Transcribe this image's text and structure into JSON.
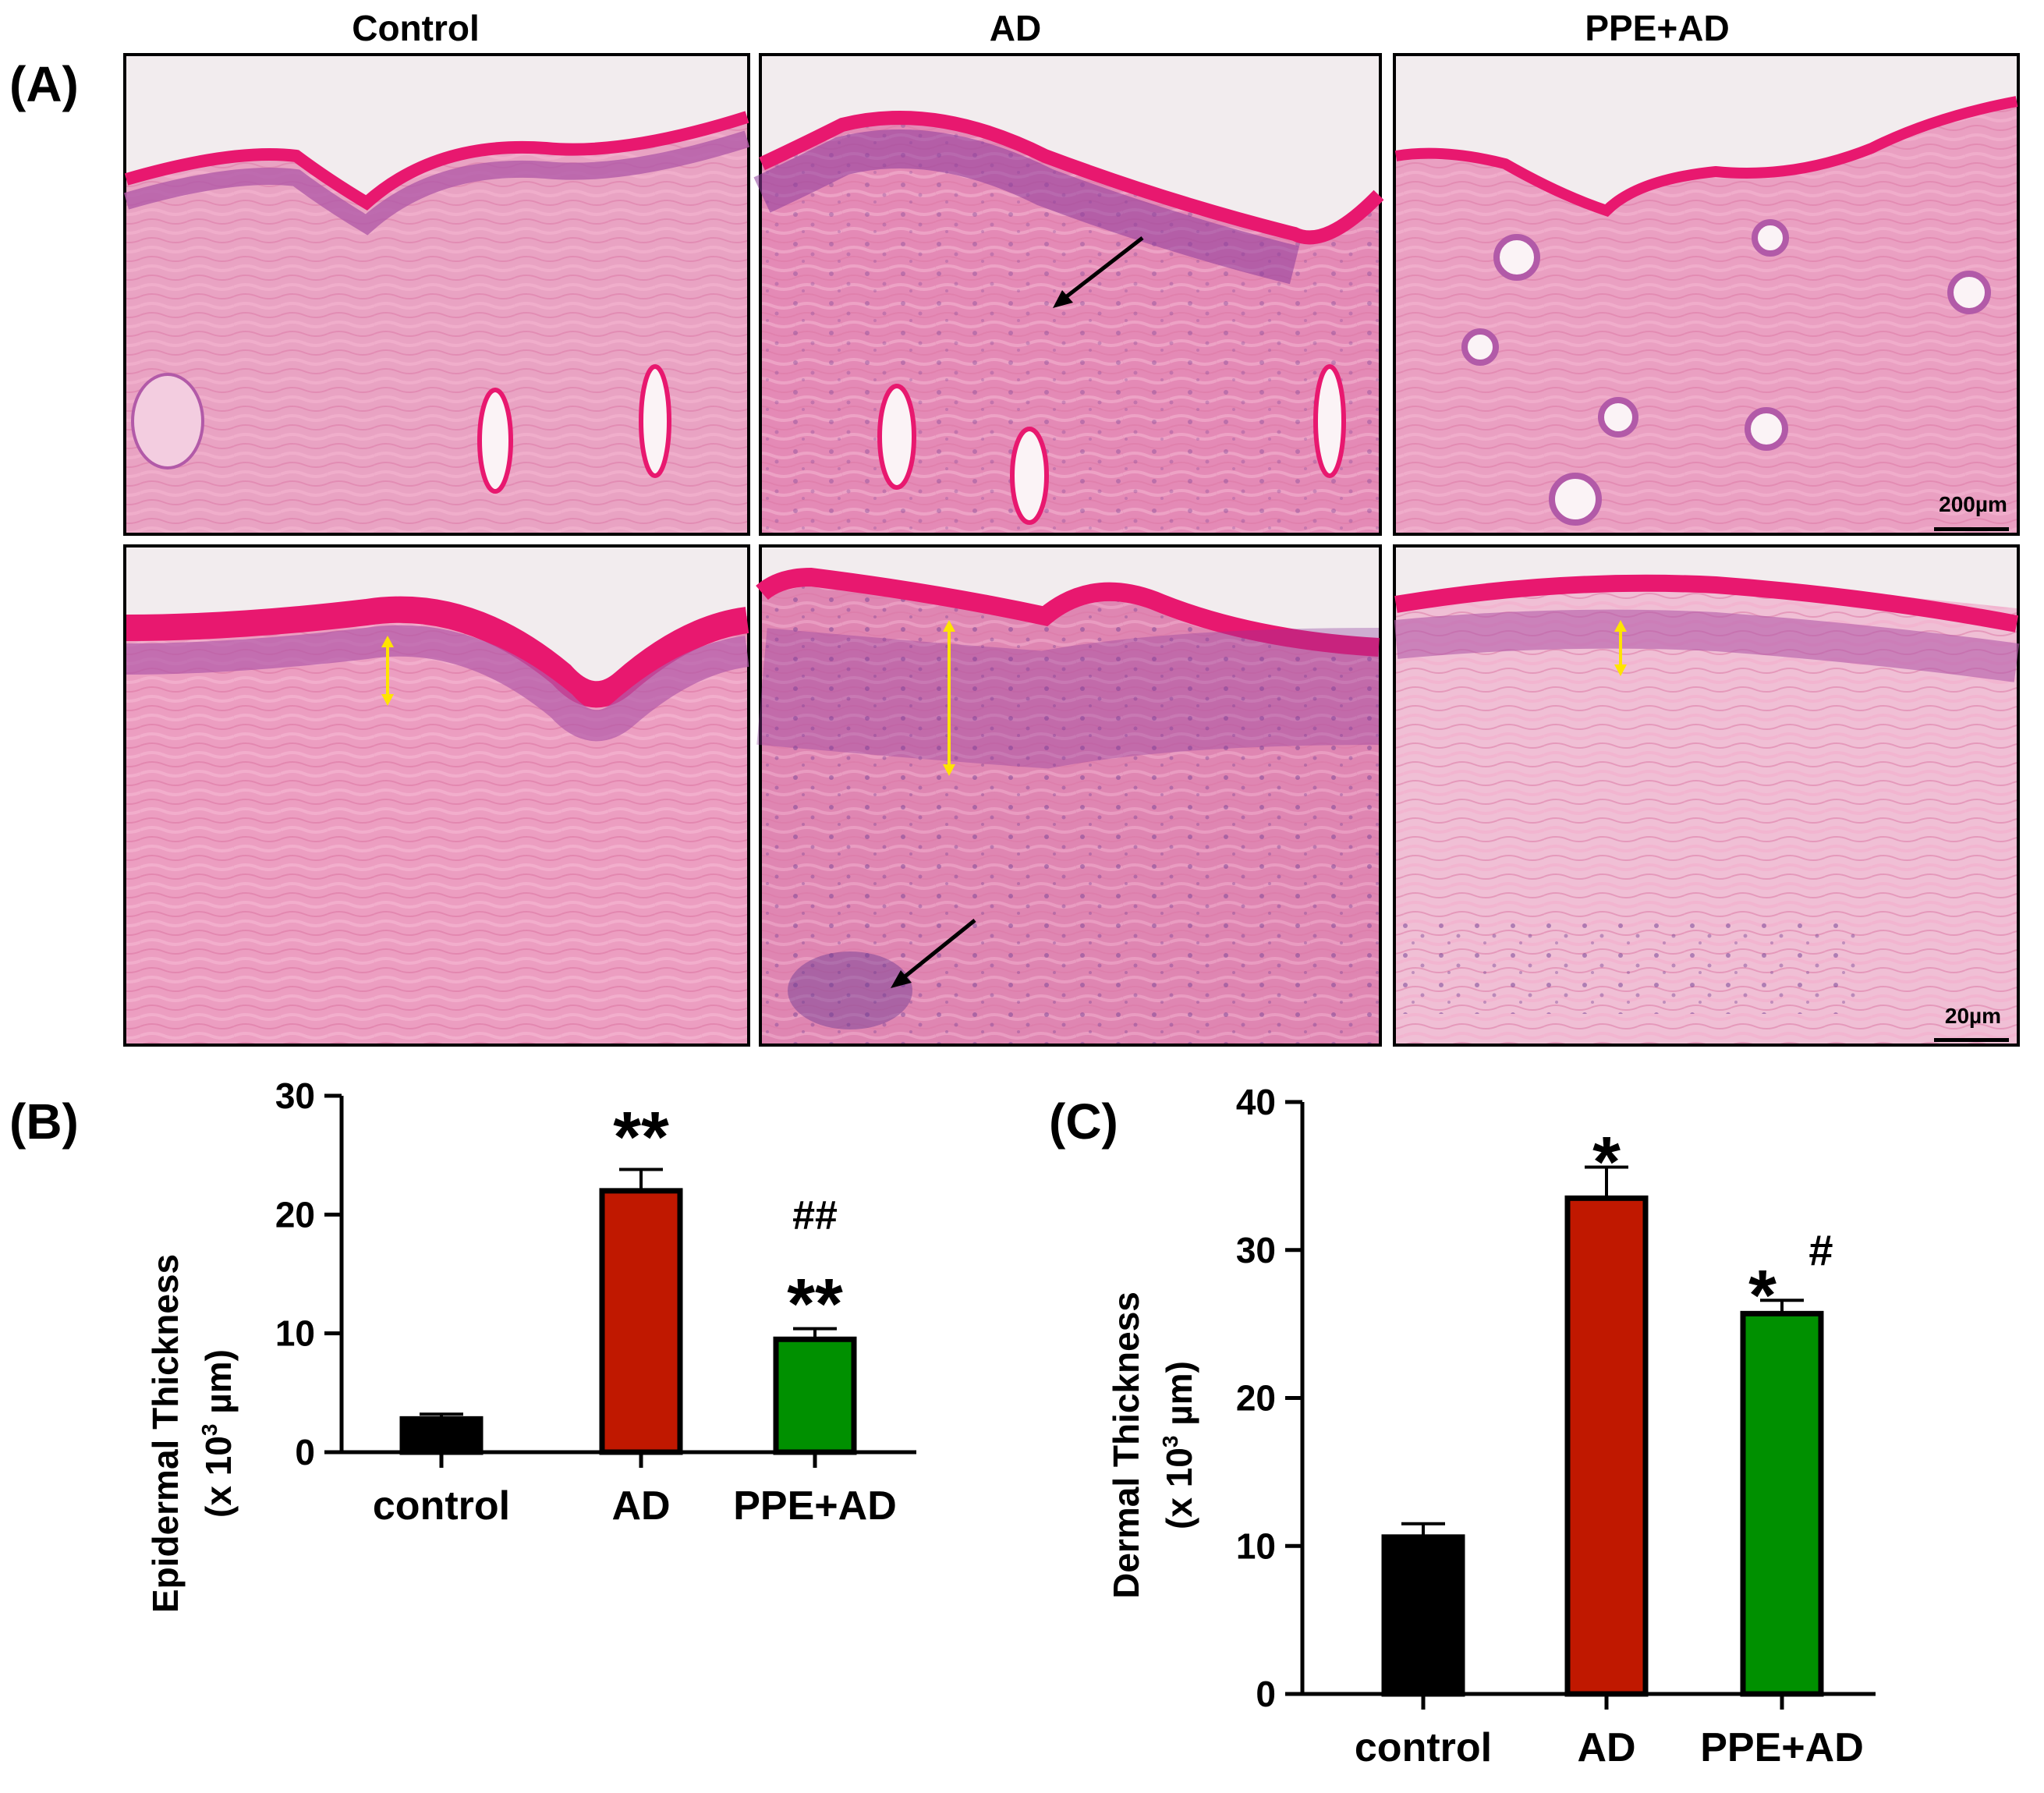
{
  "panel_labels": {
    "a": "(A)",
    "b": "(B)",
    "c": "(C)"
  },
  "histology": {
    "columns": [
      "Control",
      "AD",
      "PPE+AD"
    ],
    "scale_bars": {
      "top": "200µm",
      "bottom": "20µm"
    },
    "colors": {
      "tissue": "#e58fb9",
      "epidermis": "#b25aa8",
      "keratin": "#e8186f",
      "background": "#f2ecee",
      "nuclei": "#5b2f86"
    }
  },
  "chart_data": [
    {
      "type": "bar",
      "ylabel_line1": "Epidermal Thickness",
      "ylabel_line2_prefix": "(x 10",
      "ylabel_line2_sup": "3",
      "ylabel_line2_suffix": "  µm)",
      "categories": [
        "control",
        "AD",
        "PPE+AD"
      ],
      "values": [
        2.8,
        22.0,
        9.5
      ],
      "errors": [
        0.4,
        1.8,
        0.9
      ],
      "ylim": [
        0,
        30
      ],
      "yticks": [
        "0",
        "10",
        "20",
        "30"
      ],
      "colors": [
        "#000000",
        "#c01800",
        "#009000"
      ],
      "annotations": [
        "",
        "**",
        "**"
      ],
      "annotations_hash": [
        "",
        "",
        "##"
      ]
    },
    {
      "type": "bar",
      "ylabel_line1": "Dermal Thickness",
      "ylabel_line2_prefix": "(x 10",
      "ylabel_line2_sup": "3",
      "ylabel_line2_suffix": "  µm)",
      "categories": [
        "control",
        "AD",
        "PPE+AD"
      ],
      "values": [
        10.6,
        33.5,
        25.7
      ],
      "errors": [
        0.9,
        2.1,
        0.9
      ],
      "ylim": [
        0,
        40
      ],
      "yticks": [
        "0",
        "10",
        "20",
        "30",
        "40"
      ],
      "colors": [
        "#000000",
        "#c01800",
        "#009000"
      ],
      "annotations": [
        "",
        "*",
        "*"
      ],
      "annotations_hash": [
        "",
        "",
        "#"
      ]
    }
  ]
}
